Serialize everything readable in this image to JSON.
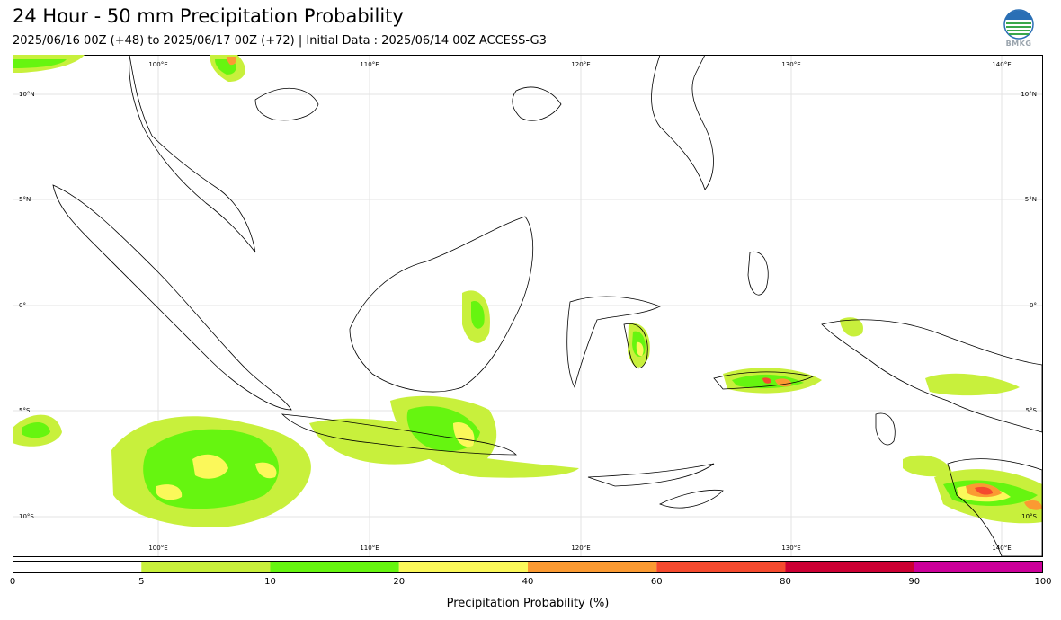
{
  "header": {
    "title": "24 Hour - 50 mm Precipitation Probability",
    "subtitle": "2025/06/16 00Z (+48) to 2025/06/17 00Z (+72) | Initial Data : 2025/06/14 00Z ACCESS-G3",
    "logo_text": "BMKG"
  },
  "map": {
    "lon_labels_top": [
      "100°E",
      "110°E",
      "120°E",
      "130°E",
      "140°E"
    ],
    "lon_labels_bottom": [
      "100°E",
      "110°E",
      "120°E",
      "130°E",
      "140°E"
    ],
    "lat_labels_left": [
      "10°N",
      "5°N",
      "0°",
      "5°S",
      "10°S"
    ],
    "lat_labels_right": [
      "10°N",
      "5°N",
      "0°",
      "5°S",
      "10°S"
    ]
  },
  "colorbar": {
    "title": "Precipitation Probability (%)",
    "ticks": [
      "0",
      "5",
      "10",
      "20",
      "40",
      "60",
      "80",
      "90",
      "100"
    ],
    "colors": [
      "#ffffff",
      "#c8f03c",
      "#66f510",
      "#fbf85a",
      "#fb9a32",
      "#f54a2e",
      "#cc0033",
      "#cc0099"
    ]
  }
}
